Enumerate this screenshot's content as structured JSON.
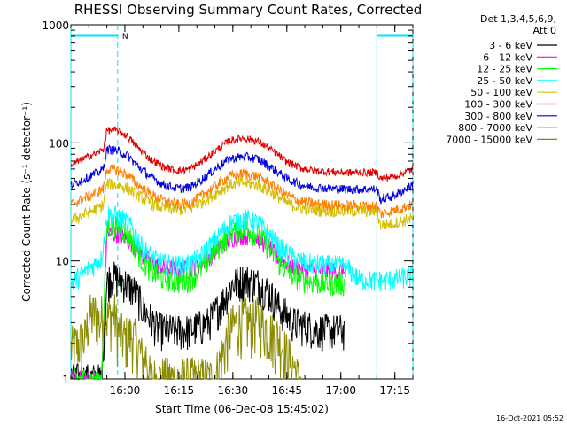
{
  "chart_data": {
    "type": "line",
    "title": "RHESSI Observing Summary Count Rates, Corrected",
    "xlabel": "Start Time (06-Dec-08 15:45:02)",
    "ylabel": "Corrected Count Rate (s⁻¹ detector⁻¹)",
    "yscale": "log",
    "ylim": [
      1,
      1000
    ],
    "xlim_minutes": [
      0,
      95
    ],
    "x_ticks": [
      "16:00",
      "16:15",
      "16:30",
      "16:45",
      "17:00",
      "17:15"
    ],
    "y_ticks": [
      "1",
      "10",
      "100",
      "1000"
    ],
    "x_tick_minutes": [
      15,
      30,
      45,
      60,
      75,
      90
    ],
    "y_tick_values": [
      1,
      10,
      100,
      1000
    ],
    "legend_header": [
      "Det 1,3,4,5,6,9,",
      "Att 0"
    ],
    "legend_placement": "right",
    "footer_date": "16-Oct-2021 05:52",
    "flag_label": "N",
    "flag_color": "#00e5ff",
    "saa_flag_bars": [
      [
        0,
        13
      ],
      [
        85,
        95
      ]
    ],
    "night_boundaries_minutes": [
      13,
      95
    ],
    "day_boundaries_minutes": [
      0,
      85
    ],
    "series": [
      {
        "name": "3 - 6 keV",
        "color": "#000000",
        "x": [
          0,
          8.5,
          10,
          11,
          14,
          18,
          20,
          23,
          24,
          28,
          33,
          38,
          42,
          45,
          48,
          52,
          55,
          58,
          62,
          66,
          70,
          74,
          76
        ],
        "y": [
          1,
          1,
          6.5,
          7.5,
          7.0,
          5.5,
          4.0,
          3.0,
          2.7,
          2.6,
          2.6,
          3.0,
          4.5,
          6.5,
          7.0,
          6.5,
          5.5,
          4.0,
          3.0,
          2.8,
          2.6,
          2.6,
          2.6
        ],
        "noise": 0.12
      },
      {
        "name": "6 - 12 keV",
        "color": "#ff00ff",
        "x": [
          0,
          8.5,
          10,
          13,
          16,
          18,
          20,
          23,
          26,
          30,
          33,
          36,
          40,
          44,
          48,
          52,
          55,
          58,
          62,
          66,
          70,
          74,
          76
        ],
        "y": [
          1,
          1,
          17,
          17,
          15,
          13,
          11,
          9.5,
          8.8,
          8.5,
          8.6,
          9.5,
          12,
          15.5,
          16.5,
          15.5,
          13,
          10.5,
          9.0,
          8.5,
          8.2,
          8.2,
          8.2
        ],
        "noise": 0.06
      },
      {
        "name": "12 - 25 keV",
        "color": "#00ff00",
        "x": [
          0,
          8.5,
          10,
          13,
          16,
          18,
          20,
          23,
          26,
          30,
          33,
          36,
          40,
          44,
          48,
          52,
          55,
          58,
          62,
          66,
          70,
          74,
          76
        ],
        "y": [
          1,
          1,
          20,
          20,
          17,
          13,
          10,
          8.0,
          7.0,
          6.8,
          7.0,
          8.5,
          12,
          17,
          19,
          17,
          13,
          9.5,
          7.5,
          6.8,
          6.5,
          6.5,
          6.5
        ],
        "noise": 0.08
      },
      {
        "name": "25 - 50 keV",
        "color": "#00ffff",
        "x": [
          0,
          8.5,
          10,
          13,
          16,
          18,
          20,
          23,
          26,
          30,
          33,
          36,
          40,
          44,
          48,
          52,
          55,
          58,
          62,
          66,
          70,
          74,
          76,
          80,
          85,
          90,
          95
        ],
        "y": [
          6.5,
          10.5,
          25,
          24,
          21,
          17,
          13,
          10.5,
          9.5,
          9.3,
          9.5,
          11,
          15,
          21,
          23,
          21,
          17,
          13,
          10.5,
          9.6,
          9.3,
          9.2,
          9.2,
          7.0,
          6.8,
          7.0,
          7.5
        ],
        "noise": 0.07
      },
      {
        "name": "50 - 100 keV",
        "color": "#d4c000",
        "x": [
          0,
          8.5,
          9,
          10,
          13,
          16,
          18,
          22,
          26,
          30,
          33,
          36,
          40,
          44,
          48,
          52,
          56,
          60,
          64,
          68,
          72,
          76,
          80,
          85,
          86,
          90,
          95
        ],
        "y": [
          22,
          29,
          30,
          45,
          44,
          41,
          37,
          31,
          28,
          27,
          28,
          31,
          37,
          44,
          46,
          44,
          38,
          31,
          28,
          27,
          26.5,
          26.5,
          26.5,
          26.5,
          20,
          21,
          23
        ],
        "noise": 0.04
      },
      {
        "name": "100 - 300 keV",
        "color": "#e00000",
        "x": [
          0,
          8.5,
          9,
          10,
          13,
          16,
          18,
          22,
          26,
          30,
          33,
          36,
          40,
          44,
          48,
          52,
          56,
          60,
          64,
          68,
          72,
          76,
          80,
          85,
          86,
          90,
          95
        ],
        "y": [
          65,
          86,
          88,
          128,
          128,
          112,
          95,
          73,
          62,
          58,
          60,
          68,
          85,
          104,
          110,
          103,
          86,
          69,
          61,
          58,
          57,
          56,
          56,
          56,
          50,
          52,
          60
        ],
        "noise": 0.025
      },
      {
        "name": "300 - 800 keV",
        "color": "#0000e0",
        "x": [
          0,
          8.5,
          9,
          10,
          13,
          16,
          18,
          22,
          26,
          30,
          33,
          36,
          40,
          44,
          48,
          52,
          56,
          60,
          64,
          68,
          72,
          76,
          80,
          85,
          86,
          90,
          95
        ],
        "y": [
          44,
          58,
          60,
          88,
          86,
          77,
          66,
          52,
          44,
          41,
          42,
          48,
          60,
          73,
          77,
          73,
          61,
          50,
          44,
          42,
          41,
          40.5,
          40.5,
          40.5,
          33,
          36,
          44
        ],
        "noise": 0.03
      },
      {
        "name": "800 - 7000 keV",
        "color": "#ff8000",
        "x": [
          0,
          8.5,
          9,
          10,
          13,
          16,
          18,
          22,
          26,
          30,
          33,
          36,
          40,
          44,
          48,
          52,
          56,
          60,
          64,
          68,
          72,
          76,
          80,
          85,
          86,
          90,
          95
        ],
        "y": [
          30,
          40,
          41,
          60,
          59,
          53,
          46,
          37,
          32,
          30,
          31,
          35,
          43,
          52,
          55,
          52,
          44,
          36,
          32,
          30.5,
          30,
          29.5,
          29.5,
          29.5,
          25,
          27,
          30
        ],
        "noise": 0.035
      },
      {
        "name": "7000 - 15000 keV",
        "color": "#8b8b00",
        "x": [
          0,
          4,
          5,
          7,
          8,
          9,
          10,
          12,
          13,
          15,
          17,
          19,
          20,
          21,
          22,
          24,
          25,
          40,
          43,
          44,
          46,
          48,
          50,
          52,
          54,
          56,
          58,
          60,
          62,
          63,
          64
        ],
        "y": [
          1.8,
          2.2,
          3.4,
          3.6,
          3.0,
          3.8,
          3.3,
          3.7,
          2.6,
          2.2,
          2.4,
          1.8,
          1.4,
          1.6,
          1.0,
          1.0,
          1.0,
          1.0,
          2.0,
          2.6,
          3.0,
          3.2,
          3.0,
          3.3,
          2.8,
          2.4,
          2.2,
          1.6,
          1.3,
          1.0,
          1.0
        ],
        "noise": 0.18
      }
    ]
  }
}
